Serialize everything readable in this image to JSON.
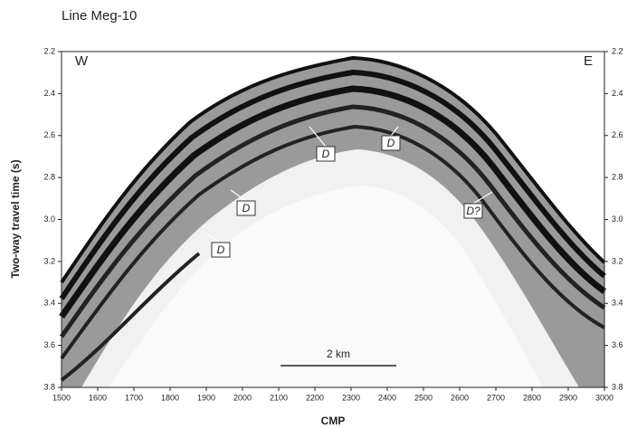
{
  "chart_data": {
    "type": "seismic-section",
    "title": "Line Meg-10",
    "xlabel": "CMP",
    "ylabel": "Two-way travel time (s)",
    "left_label": "W",
    "right_label": "E",
    "xlim": [
      1500,
      3000
    ],
    "xticks": [
      1500,
      1600,
      1700,
      1800,
      1900,
      2000,
      2100,
      2200,
      2300,
      2400,
      2500,
      2600,
      2700,
      2800,
      2900,
      3000
    ],
    "ylim": [
      2.2,
      3.8
    ],
    "yticks": [
      2.2,
      2.4,
      2.6,
      2.8,
      {
        "value": 3,
        "label": "3.0"
      },
      3.2,
      3.4,
      3.6,
      3.8
    ],
    "scale_bar": "2 km",
    "annotations": [
      "D",
      "D",
      "D",
      "D",
      "D?"
    ]
  }
}
